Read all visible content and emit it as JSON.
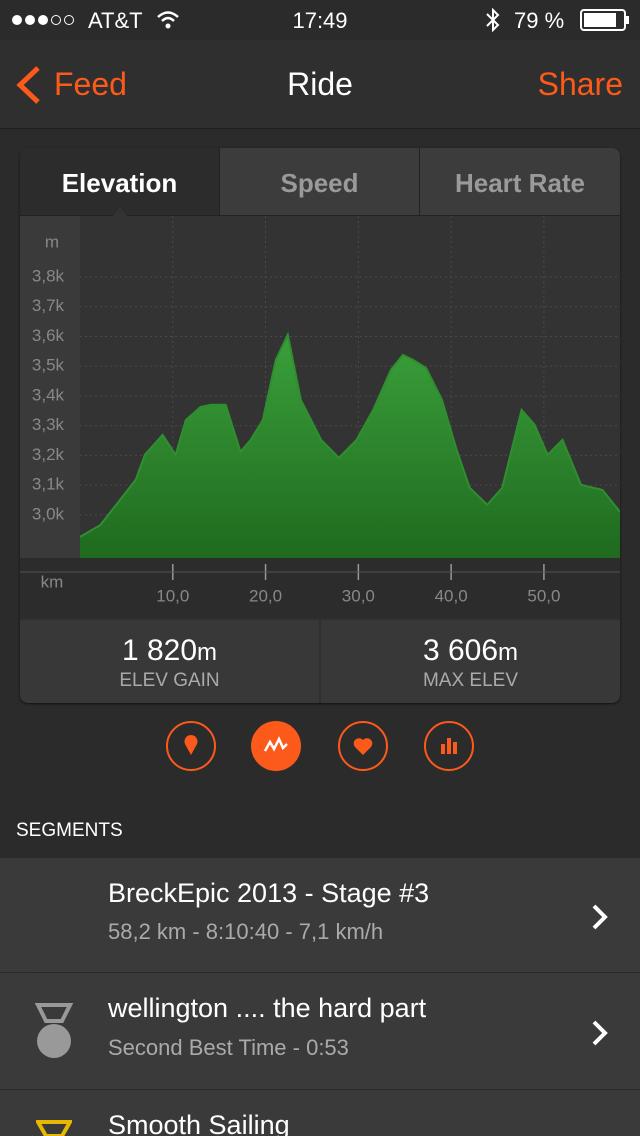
{
  "status_bar": {
    "carrier": "AT&T",
    "time": "17:49",
    "battery": "79 %"
  },
  "nav": {
    "back": "Feed",
    "title": "Ride",
    "action": "Share"
  },
  "tabs": [
    "Elevation",
    "Speed",
    "Heart Rate"
  ],
  "chart_data": {
    "type": "area",
    "y_unit": "m",
    "x_unit": "km",
    "color": "#2f8f2f",
    "grid": true,
    "x": [
      0,
      2.2,
      4.3,
      6.0,
      7.0,
      8.9,
      10.3,
      11.4,
      13.0,
      14.1,
      15.7,
      17.3,
      18.4,
      19.7,
      21.1,
      22.4,
      23.8,
      26.0,
      27.9,
      29.8,
      31.6,
      33.5,
      34.8,
      35.9,
      37.3,
      39.0,
      40.6,
      42.0,
      43.9,
      45.5,
      47.6,
      49.0,
      50.4,
      52.0,
      54.0,
      56.3,
      58.2
    ],
    "values": [
      2926,
      2966,
      3050,
      3118,
      3202,
      3269,
      3202,
      3319,
      3363,
      3370,
      3370,
      3212,
      3252,
      3319,
      3521,
      3606,
      3387,
      3252,
      3192,
      3252,
      3353,
      3487,
      3538,
      3521,
      3494,
      3387,
      3218,
      3091,
      3034,
      3091,
      3353,
      3303,
      3202,
      3252,
      3101,
      3084,
      3010
    ],
    "xlim": [
      0,
      58.2
    ],
    "ylim": [
      2855,
      4005
    ],
    "xticks": [
      {
        "value": 10,
        "label": "10,0"
      },
      {
        "value": 20,
        "label": "20,0"
      },
      {
        "value": 30,
        "label": "30,0"
      },
      {
        "value": 40,
        "label": "40,0"
      },
      {
        "value": 50,
        "label": "50,0"
      }
    ],
    "yticks": [
      {
        "value": 3000,
        "label": "3,0k"
      },
      {
        "value": 3100,
        "label": "3,1k"
      },
      {
        "value": 3200,
        "label": "3,2k"
      },
      {
        "value": 3300,
        "label": "3,3k"
      },
      {
        "value": 3400,
        "label": "3,4k"
      },
      {
        "value": 3500,
        "label": "3,5k"
      },
      {
        "value": 3600,
        "label": "3,6k"
      },
      {
        "value": 3700,
        "label": "3,7k"
      },
      {
        "value": 3800,
        "label": "3,8k"
      }
    ]
  },
  "stats": [
    {
      "value": "1 820",
      "unit": "m",
      "label": "ELEV GAIN"
    },
    {
      "value": "3 606",
      "unit": "m",
      "label": "MAX ELEV"
    }
  ],
  "segments_header": "SEGMENTS",
  "segments": [
    {
      "title": "BreckEpic 2013 - Stage #3",
      "subtitle": "58,2 km - 8:10:40 - 7,1 km/h"
    },
    {
      "title": "wellington .... the hard part",
      "subtitle": "Second Best Time - 0:53",
      "rank": "2"
    },
    {
      "title": "Smooth Sailing"
    }
  ]
}
